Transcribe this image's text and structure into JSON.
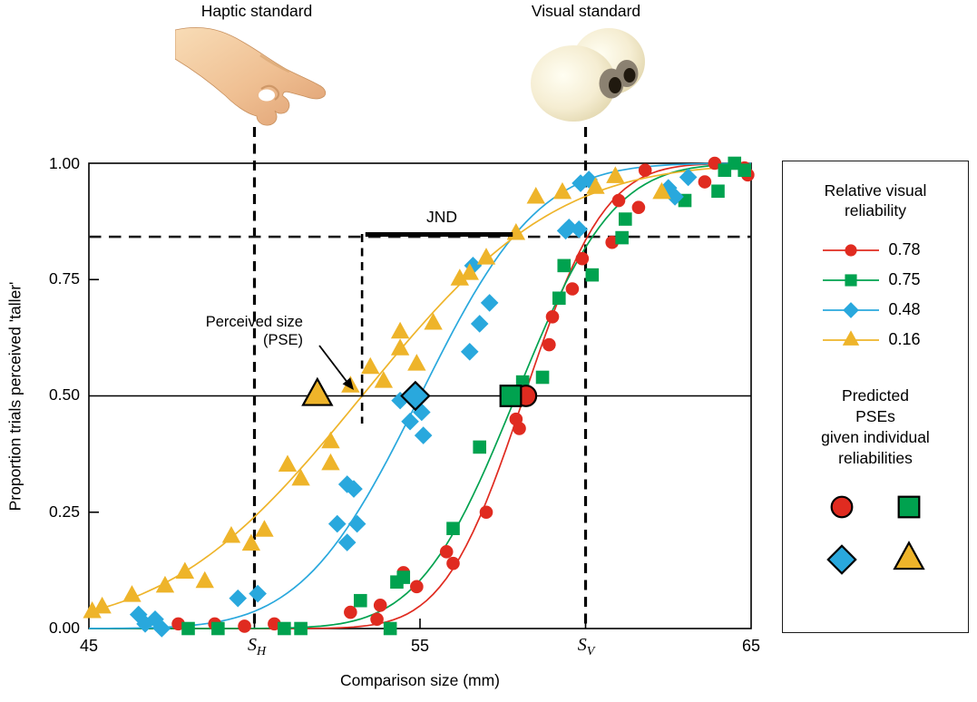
{
  "figure": {
    "title_haptic": "Haptic standard",
    "title_visual": "Visual standard"
  },
  "axes": {
    "y_title": "Proportion trials perceived 'taller'",
    "x_title": "Comparison size (mm)",
    "y_tick_labels": [
      "1.00",
      "0.75",
      "0.50",
      "0.25",
      "0.00"
    ],
    "x_tick_left": "45",
    "x_tick_mid": "55",
    "x_tick_right": "65",
    "s_h": {
      "main": "S",
      "sub": "H"
    },
    "s_v": {
      "main": "S",
      "sub": "V"
    }
  },
  "annotations": {
    "jnd_label": "JND",
    "pse_label_line1": "Perceived size",
    "pse_label_line2": "(PSE)"
  },
  "legend": {
    "title_line1": "Relative visual",
    "title_line2": "reliability",
    "entries": [
      {
        "label": "0.78",
        "marker": "circle",
        "color": "#e02b20"
      },
      {
        "label": "0.75",
        "marker": "square",
        "color": "#00a24f"
      },
      {
        "label": "0.48",
        "marker": "diamond",
        "color": "#29a8dd"
      },
      {
        "label": "0.16",
        "marker": "triangle",
        "color": "#eeb42a"
      }
    ],
    "predicted_title_lines": [
      "Predicted",
      "PSEs",
      "given individual",
      "reliabilities"
    ],
    "predicted_markers": [
      {
        "marker": "circle",
        "color": "#e02b20"
      },
      {
        "marker": "square",
        "color": "#00a24f"
      },
      {
        "marker": "diamond",
        "color": "#29a8dd"
      },
      {
        "marker": "triangle",
        "color": "#eeb42a"
      }
    ]
  },
  "chart_data": {
    "type": "scatter",
    "subtype": "psychometric-functions",
    "title": "",
    "xlabel": "Comparison size (mm)",
    "ylabel": "Proportion trials perceived 'taller'",
    "xlim": [
      45,
      65
    ],
    "ylim": [
      0,
      1
    ],
    "x_tick_values": [
      45,
      50,
      55,
      60,
      65
    ],
    "x_tick_labels": [
      "45",
      "S_H",
      "55",
      "S_V",
      "65"
    ],
    "y_tick_values": [
      0,
      0.25,
      0.5,
      0.75,
      1.0
    ],
    "grid": false,
    "legend_position": "right",
    "standards": {
      "haptic_mm": 50,
      "visual_mm": 60
    },
    "reference_lines": {
      "pse_level": 0.5,
      "jnd_level": 0.842,
      "pse_marker_mm": 53.25,
      "jnd_span_mm": [
        53.35,
        57.8
      ]
    },
    "series": [
      {
        "name": "0.78",
        "marker": "circle",
        "color": "#e02b20",
        "psychometric": {
          "pse_mm": 58.15,
          "sigma_mm": 1.9
        },
        "predicted_pse_mm": 58.2,
        "points": [
          [
            47.7,
            0.01
          ],
          [
            48.8,
            0.01
          ],
          [
            49.7,
            0.005
          ],
          [
            50.6,
            0.01
          ],
          [
            52.9,
            0.035
          ],
          [
            53.7,
            0.02
          ],
          [
            53.8,
            0.05
          ],
          [
            54.5,
            0.12
          ],
          [
            54.9,
            0.09
          ],
          [
            55.8,
            0.165
          ],
          [
            56.0,
            0.14
          ],
          [
            57.0,
            0.25
          ],
          [
            57.9,
            0.45
          ],
          [
            58.0,
            0.43
          ],
          [
            58.9,
            0.61
          ],
          [
            59.0,
            0.67
          ],
          [
            59.6,
            0.73
          ],
          [
            59.9,
            0.795
          ],
          [
            60.8,
            0.83
          ],
          [
            61.0,
            0.92
          ],
          [
            61.6,
            0.905
          ],
          [
            61.8,
            0.985
          ],
          [
            63.6,
            0.96
          ],
          [
            63.9,
            1.0
          ],
          [
            64.8,
            0.99
          ],
          [
            64.9,
            0.975
          ]
        ]
      },
      {
        "name": "0.75",
        "marker": "square",
        "color": "#00a24f",
        "psychometric": {
          "pse_mm": 57.9,
          "sigma_mm": 2.3
        },
        "predicted_pse_mm": 57.74,
        "points": [
          [
            48.0,
            0.0
          ],
          [
            48.9,
            0.0
          ],
          [
            50.9,
            0.0
          ],
          [
            51.4,
            0.0
          ],
          [
            53.2,
            0.06
          ],
          [
            54.1,
            0.0
          ],
          [
            54.3,
            0.1
          ],
          [
            54.5,
            0.11
          ],
          [
            56.0,
            0.215
          ],
          [
            56.8,
            0.39
          ],
          [
            58.1,
            0.53
          ],
          [
            58.7,
            0.54
          ],
          [
            59.2,
            0.71
          ],
          [
            59.35,
            0.78
          ],
          [
            60.2,
            0.76
          ],
          [
            61.1,
            0.84
          ],
          [
            61.2,
            0.88
          ],
          [
            63.0,
            0.92
          ],
          [
            64.0,
            0.94
          ],
          [
            64.2,
            0.985
          ],
          [
            64.5,
            1.0
          ],
          [
            64.8,
            0.985
          ]
        ]
      },
      {
        "name": "0.48",
        "marker": "diamond",
        "color": "#29a8dd",
        "psychometric": {
          "pse_mm": 55.0,
          "sigma_mm": 2.8
        },
        "predicted_pse_mm": 54.86,
        "points": [
          [
            46.5,
            0.03
          ],
          [
            46.7,
            0.01
          ],
          [
            47.0,
            0.02
          ],
          [
            47.2,
            0.0
          ],
          [
            49.5,
            0.065
          ],
          [
            50.1,
            0.075
          ],
          [
            52.5,
            0.225
          ],
          [
            52.8,
            0.31
          ],
          [
            52.8,
            0.185
          ],
          [
            53.0,
            0.3
          ],
          [
            53.1,
            0.225
          ],
          [
            54.4,
            0.49
          ],
          [
            54.7,
            0.445
          ],
          [
            55.05,
            0.465
          ],
          [
            55.1,
            0.415
          ],
          [
            56.5,
            0.595
          ],
          [
            56.6,
            0.78
          ],
          [
            56.8,
            0.655
          ],
          [
            57.1,
            0.7
          ],
          [
            59.4,
            0.855
          ],
          [
            59.5,
            0.862
          ],
          [
            59.8,
            0.858
          ],
          [
            59.85,
            0.957
          ],
          [
            60.1,
            0.965
          ],
          [
            62.5,
            0.947
          ],
          [
            62.7,
            0.928
          ],
          [
            63.1,
            0.97
          ]
        ]
      },
      {
        "name": "0.16",
        "marker": "triangle",
        "color": "#eeb42a",
        "psychometric": {
          "pse_mm": 53.25,
          "sigma_mm": 4.6
        },
        "predicted_pse_mm": 51.9,
        "points": [
          [
            45.1,
            0.035
          ],
          [
            45.4,
            0.045
          ],
          [
            46.3,
            0.07
          ],
          [
            47.3,
            0.09
          ],
          [
            47.9,
            0.12
          ],
          [
            48.5,
            0.1
          ],
          [
            49.3,
            0.197
          ],
          [
            49.9,
            0.18
          ],
          [
            50.3,
            0.21
          ],
          [
            51.0,
            0.35
          ],
          [
            51.4,
            0.32
          ],
          [
            52.3,
            0.4
          ],
          [
            52.3,
            0.353
          ],
          [
            52.9,
            0.52
          ],
          [
            53.5,
            0.56
          ],
          [
            53.9,
            0.53
          ],
          [
            54.4,
            0.6
          ],
          [
            54.4,
            0.636
          ],
          [
            54.9,
            0.567
          ],
          [
            55.4,
            0.655
          ],
          [
            56.2,
            0.75
          ],
          [
            56.5,
            0.762
          ],
          [
            57.0,
            0.795
          ],
          [
            57.9,
            0.848
          ],
          [
            58.5,
            0.926
          ],
          [
            59.3,
            0.936
          ],
          [
            60.3,
            0.947
          ],
          [
            60.9,
            0.97
          ],
          [
            62.3,
            0.936
          ]
        ]
      }
    ]
  }
}
